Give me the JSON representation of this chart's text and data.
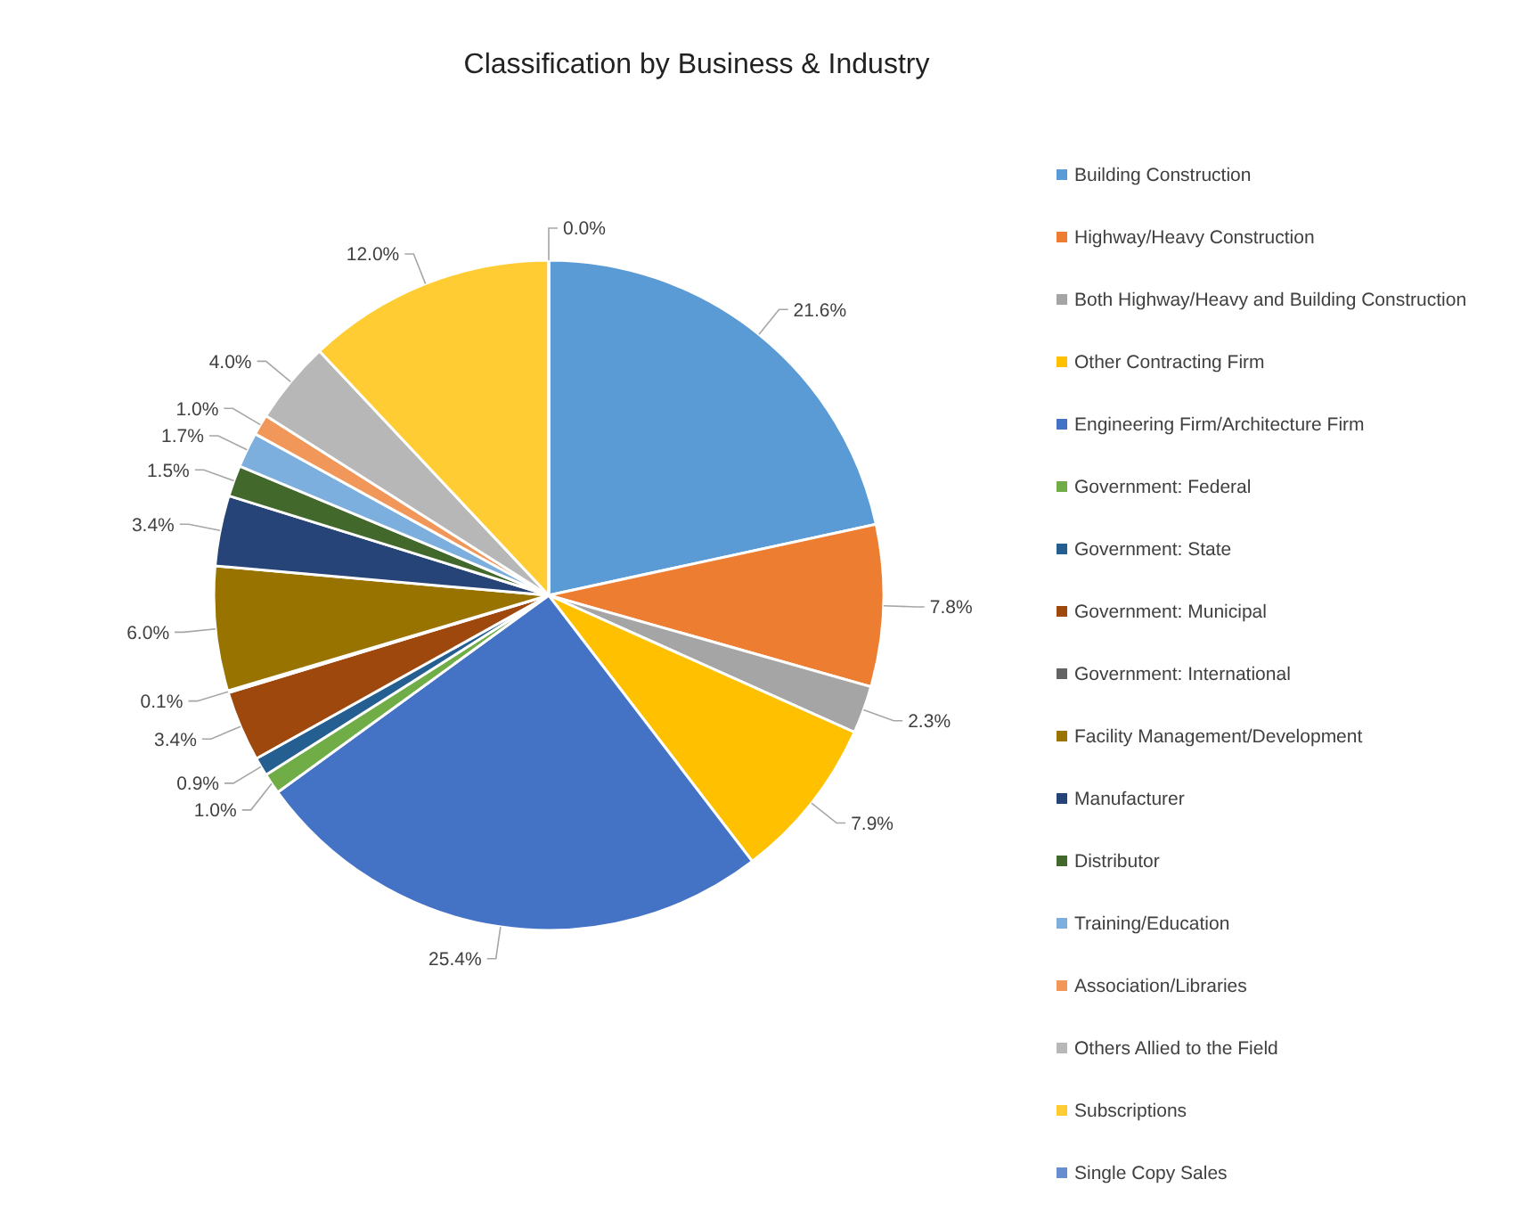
{
  "chart_data": {
    "type": "pie",
    "title": "Classification by Business & Industry",
    "categories": [
      "Building Construction",
      "Highway/Heavy Construction",
      "Both Highway/Heavy and Building Construction",
      "Other Contracting Firm",
      "Engineering Firm/Architecture Firm",
      "Government: Federal",
      "Government: State",
      "Government: Municipal",
      "Government: International",
      "Facility Management/Development",
      "Manufacturer",
      "Distributor",
      "Training/Education",
      "Association/Libraries",
      "Others Allied to the Field",
      "Subscriptions",
      "Single Copy Sales"
    ],
    "values": [
      21.6,
      7.8,
      2.3,
      7.9,
      25.4,
      1.0,
      0.9,
      3.4,
      0.1,
      6.0,
      3.4,
      1.5,
      1.7,
      1.0,
      4.0,
      12.0,
      0.0
    ],
    "value_labels": [
      "21.6%",
      "7.8%",
      "2.3%",
      "7.9%",
      "25.4%",
      "1.0%",
      "0.9%",
      "3.4%",
      "0.1%",
      "6.0%",
      "3.4%",
      "1.5%",
      "1.7%",
      "1.0%",
      "4.0%",
      "12.0%",
      "0.0%"
    ],
    "colors": [
      "#5b9bd5",
      "#ed7d31",
      "#a5a5a5",
      "#ffc000",
      "#4472c4",
      "#70ad47",
      "#255e91",
      "#9e480e",
      "#636363",
      "#997300",
      "#264478",
      "#43682b",
      "#7cafdd",
      "#f1975a",
      "#b7b7b7",
      "#ffcd33",
      "#698ed0"
    ],
    "legend": "right"
  }
}
